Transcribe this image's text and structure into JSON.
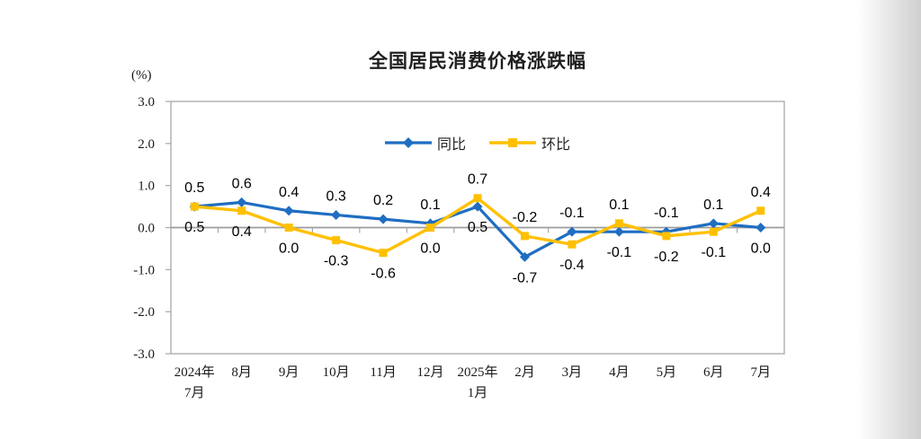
{
  "chart_data": {
    "type": "line",
    "title": "全国居民消费价格涨跌幅",
    "unit_label": "(%)",
    "categories": [
      [
        "2024年",
        "7月"
      ],
      [
        "8月"
      ],
      [
        "9月"
      ],
      [
        "10月"
      ],
      [
        "11月"
      ],
      [
        "12月"
      ],
      [
        "2025年",
        "1月"
      ],
      [
        "2月"
      ],
      [
        "3月"
      ],
      [
        "4月"
      ],
      [
        "5月"
      ],
      [
        "6月"
      ],
      [
        "7月"
      ]
    ],
    "series": [
      {
        "name": "同比",
        "marker": "diamond",
        "color": "#1F6EC1",
        "values": [
          0.5,
          0.6,
          0.4,
          0.3,
          0.2,
          0.1,
          0.5,
          -0.7,
          -0.1,
          -0.1,
          -0.1,
          0.1,
          0.0
        ]
      },
      {
        "name": "环比",
        "marker": "square",
        "color": "#FFC000",
        "values": [
          0.5,
          0.4,
          0.0,
          -0.3,
          -0.6,
          0.0,
          0.7,
          -0.2,
          -0.4,
          0.1,
          -0.2,
          -0.1,
          0.4
        ]
      }
    ],
    "data_labels": {
      "upper": [
        "0.5",
        "0.6",
        "0.4",
        "0.3",
        "0.2",
        "0.1",
        "0.7",
        "-0.2",
        "-0.1",
        "0.1",
        "-0.1",
        "0.1",
        "0.4"
      ],
      "lower": [
        "0.5",
        "0.4",
        "0.0",
        "-0.3",
        "-0.6",
        "0.0",
        "0.5",
        "-0.7",
        "-0.4",
        "-0.1",
        "-0.2",
        "-0.1",
        "0.0"
      ]
    },
    "y_axis": {
      "min": -3.0,
      "max": 3.0,
      "step": 1.0,
      "tick_labels": [
        "3.0",
        "2.0",
        "1.0",
        "0.0",
        "-1.0",
        "-2.0",
        "-3.0"
      ]
    },
    "axis_color": "#A8A8A8",
    "zero_line_color": "#9B9B9B",
    "legend_position": "top-center",
    "grid": "zero-line-only"
  }
}
